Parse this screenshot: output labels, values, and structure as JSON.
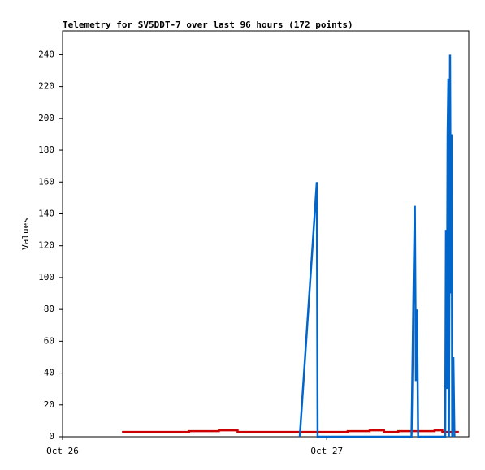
{
  "chart_data": {
    "type": "line",
    "title": "Telemetry for SV5DDT-7 over last 96 hours (172 points)",
    "ylabel": "Values",
    "xlim": [
      0,
      36.9
    ],
    "ylim": [
      0,
      255
    ],
    "xticks": [
      {
        "value": 0,
        "label": "Oct 26"
      },
      {
        "value": 24,
        "label": "Oct 27"
      }
    ],
    "yticks": [
      0,
      20,
      40,
      60,
      80,
      100,
      120,
      140,
      160,
      180,
      200,
      220,
      240
    ],
    "series": [
      {
        "color": "#cc0000",
        "x": [
          5.4,
          11.5,
          11.5,
          14.2,
          14.2,
          15.9,
          15.9,
          25.9,
          25.9,
          27.9,
          27.9,
          29.2,
          29.2,
          30.5,
          30.5,
          33.8,
          33.8,
          34.5,
          34.5,
          36.0
        ],
        "values": [
          3,
          3,
          3.5,
          3.5,
          4,
          4,
          3,
          3,
          3.5,
          3.5,
          4,
          4,
          3,
          3,
          3.5,
          3.5,
          4,
          4,
          3,
          3
        ]
      },
      {
        "color": "#0066cc",
        "x": [
          21.55,
          23.1,
          23.17,
          31.7,
          31.9,
          32.0,
          32.1,
          32.15,
          32.2,
          32.25,
          32.3,
          34.76,
          34.83,
          34.9,
          34.98,
          35.05,
          35.1,
          35.2,
          35.28,
          35.35,
          35.4,
          35.5,
          35.6
        ],
        "values": [
          0,
          160,
          0,
          0,
          100,
          145,
          35,
          70,
          80,
          40,
          0,
          0,
          130,
          30,
          190,
          225,
          0,
          240,
          90,
          190,
          0,
          50,
          0
        ]
      }
    ]
  }
}
